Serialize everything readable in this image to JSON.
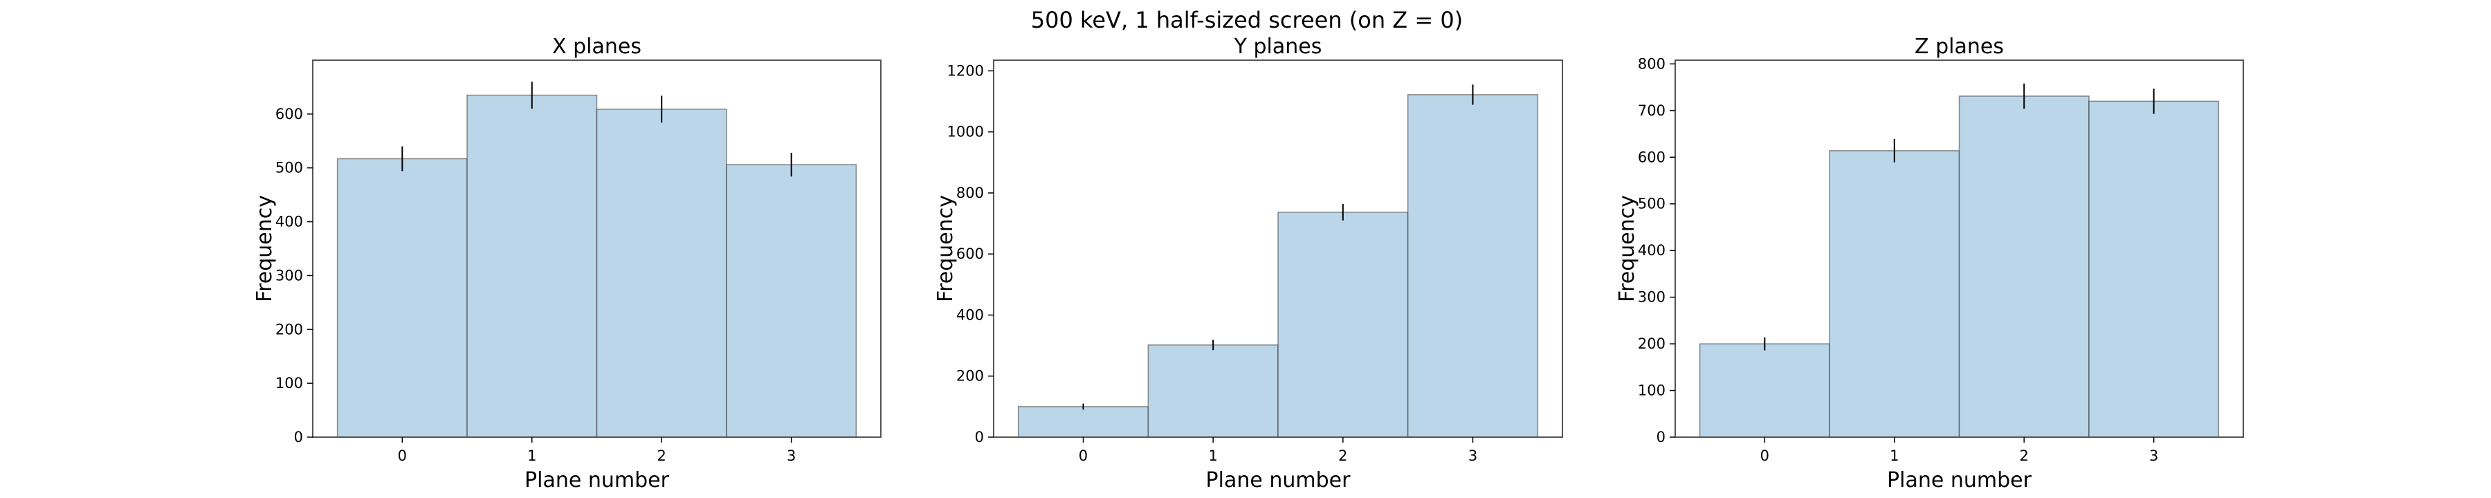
{
  "figure_title": "500 keV, 1 half-sized screen (on Z = 0)",
  "colors": {
    "bar_fill": "#a6c8e1",
    "bar_edge": "#3b5566",
    "error_bar": "#000000"
  },
  "chart_data": [
    {
      "type": "bar",
      "title": "X planes",
      "xlabel": "Plane number",
      "ylabel": "Frequency",
      "categories": [
        "0",
        "1",
        "2",
        "3"
      ],
      "values": [
        517,
        635,
        609,
        506
      ],
      "errors": [
        23,
        25,
        25,
        22
      ],
      "ylim": [
        0,
        700
      ],
      "yticks": [
        0,
        100,
        200,
        300,
        400,
        500,
        600
      ],
      "grid": false
    },
    {
      "type": "bar",
      "title": "Y planes",
      "xlabel": "Plane number",
      "ylabel": "Frequency",
      "categories": [
        "0",
        "1",
        "2",
        "3"
      ],
      "values": [
        100,
        302,
        737,
        1122
      ],
      "errors": [
        10,
        17,
        27,
        33
      ],
      "ylim": [
        0,
        1235
      ],
      "yticks": [
        0,
        200,
        400,
        600,
        800,
        1000,
        1200
      ],
      "grid": false
    },
    {
      "type": "bar",
      "title": "Z planes",
      "xlabel": "Plane number",
      "ylabel": "Frequency",
      "categories": [
        "0",
        "1",
        "2",
        "3"
      ],
      "values": [
        200,
        614,
        731,
        720
      ],
      "errors": [
        14,
        25,
        27,
        27
      ],
      "ylim": [
        0,
        808
      ],
      "yticks": [
        0,
        100,
        200,
        300,
        400,
        500,
        600,
        700,
        800
      ],
      "grid": false
    }
  ]
}
